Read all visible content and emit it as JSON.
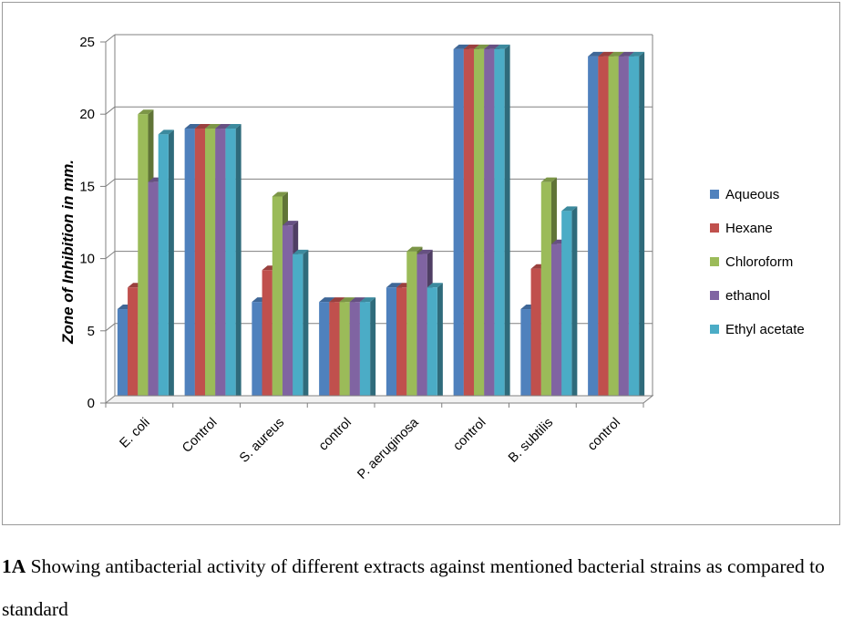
{
  "chart_data": {
    "type": "bar",
    "title": "",
    "xlabel": "",
    "ylabel": "Zone of Inhibition  in mm.",
    "ylim": [
      0,
      25
    ],
    "yticks": [
      0,
      5,
      10,
      15,
      20,
      25
    ],
    "grid": true,
    "legend_position": "right",
    "categories": [
      "E. coli",
      "Control",
      "S. aureus",
      "control",
      "P. aeruginosa",
      "control",
      "B. subtilis",
      "control"
    ],
    "series": [
      {
        "name": "Aqueous",
        "color": "#4F81BD",
        "values": [
          6.5,
          19,
          7,
          7,
          8,
          24.5,
          6.5,
          24
        ]
      },
      {
        "name": "Hexane",
        "color": "#C0504D",
        "values": [
          8,
          19,
          9.2,
          7,
          8,
          24.5,
          9.3,
          24
        ]
      },
      {
        "name": "Chloroform",
        "color": "#9BBB59",
        "values": [
          20,
          19,
          14.3,
          7,
          10.5,
          24.5,
          15.3,
          24
        ]
      },
      {
        "name": "ethanol",
        "color": "#8064A2",
        "values": [
          15.3,
          19,
          12.3,
          7,
          10.3,
          24.5,
          11,
          24
        ]
      },
      {
        "name": "Ethyl acetate",
        "color": "#4BACC6",
        "values": [
          18.6,
          19,
          10.3,
          7,
          8,
          24.5,
          13.3,
          24
        ]
      }
    ]
  },
  "caption": {
    "label": "1A",
    "text": " Showing antibacterial activity of different extracts against mentioned bacterial strains as compared to standard"
  }
}
